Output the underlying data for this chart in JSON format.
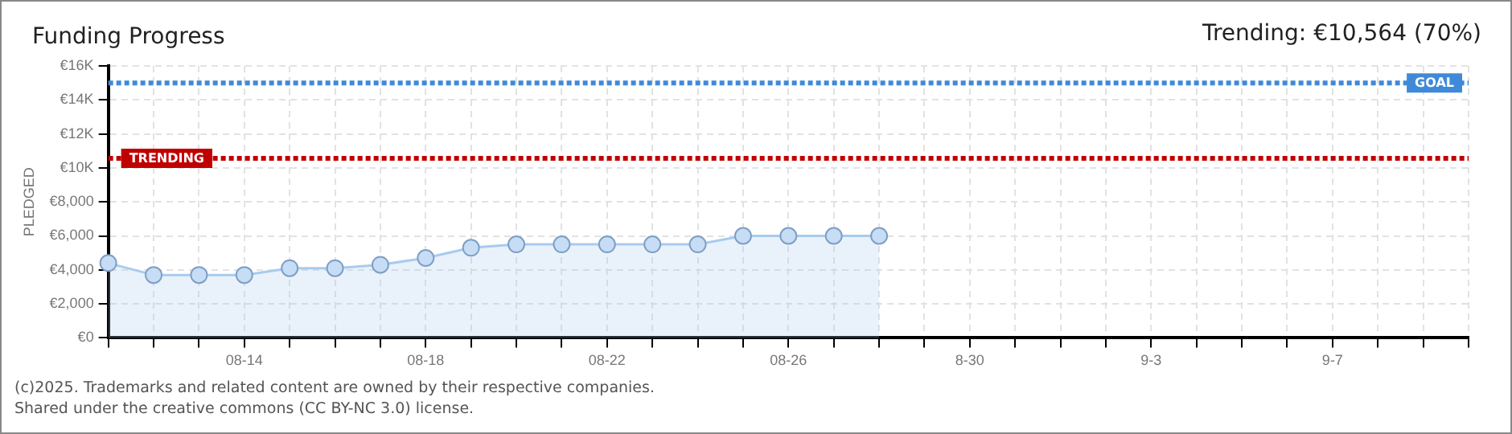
{
  "chart_data": {
    "type": "area",
    "title": "Funding Progress",
    "subtitle": "Trending: €10,564 (70%)",
    "ylabel": "PLEDGED",
    "categories": [
      null,
      null,
      null,
      "08-14",
      null,
      null,
      null,
      "08-18",
      null,
      null,
      null,
      "08-22",
      null,
      null,
      null,
      "08-26",
      null,
      null,
      null,
      "8-30",
      null,
      null,
      null,
      "9-3",
      null,
      null,
      null,
      "9-7",
      null,
      null,
      null
    ],
    "series": [
      {
        "color": "#a8cbef",
        "values": [
          4400,
          3700,
          3700,
          3700,
          4100,
          4100,
          4300,
          4700,
          5300,
          5500,
          5500,
          5500,
          5500,
          5500,
          6000,
          6000,
          6000,
          6000,
          null,
          null,
          null,
          null,
          null,
          null,
          null,
          null,
          null,
          null,
          null,
          null,
          null
        ]
      }
    ],
    "ylim": [
      0,
      16000
    ],
    "yticks": [
      {
        "value": 0,
        "label": "€0"
      },
      {
        "value": 2000,
        "label": "€2,000"
      },
      {
        "value": 4000,
        "label": "€4,000"
      },
      {
        "value": 6000,
        "label": "€6,000"
      },
      {
        "value": 8000,
        "label": "€8,000"
      },
      {
        "value": 10000,
        "label": "€10K"
      },
      {
        "value": 12000,
        "label": "€12K"
      },
      {
        "value": 14000,
        "label": "€14K"
      },
      {
        "value": 16000,
        "label": "€16K"
      }
    ],
    "ref_lines": [
      {
        "axis": "y",
        "value": 15000,
        "label": "GOAL",
        "color": "#3f8ad8",
        "line_style": "dotted"
      },
      {
        "axis": "y",
        "value": 10564,
        "label": "TRENDING",
        "color": "#c00000",
        "line_style": "dotted"
      }
    ],
    "grid": true,
    "marker": "circle",
    "legend": false,
    "annotations": [
      "(c)2025. Trademarks and related content are owned by their respective companies.",
      "Shared under the creative commons (CC BY-NC 3.0) license."
    ]
  }
}
